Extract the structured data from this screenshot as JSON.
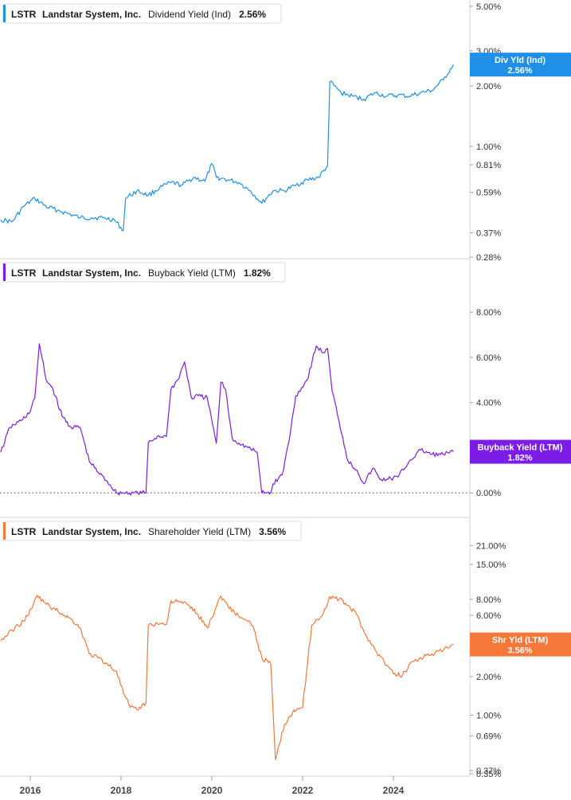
{
  "chart_data": [
    {
      "type": "line",
      "ticker": "LSTR",
      "company": "Landstar System, Inc.",
      "metric": "Dividend Yield (Ind)",
      "current_value": "2.56%",
      "tag_label": "Div Yld (Ind)",
      "tag_value": "2.56%",
      "color": "#1f8fe8",
      "scale": "log",
      "ylim": [
        0.28,
        5.0
      ],
      "yticks": [
        0.28,
        0.37,
        0.59,
        0.81,
        1.0,
        2.0,
        3.0,
        5.0
      ],
      "ytick_labels": [
        "0.28%",
        "0.37%",
        "0.59%",
        "0.81%",
        "1.00%",
        "2.00%",
        "3.00%",
        "5.00%"
      ],
      "x": [
        2015.35,
        2015.6,
        2015.85,
        2016.1,
        2016.35,
        2016.6,
        2016.85,
        2017.1,
        2017.35,
        2017.6,
        2017.85,
        2018.05,
        2018.1,
        2018.35,
        2018.6,
        2018.85,
        2019.1,
        2019.35,
        2019.6,
        2019.85,
        2020.0,
        2020.1,
        2020.35,
        2020.6,
        2020.85,
        2021.1,
        2021.35,
        2021.6,
        2021.85,
        2022.1,
        2022.35,
        2022.55,
        2022.6,
        2022.85,
        2023.1,
        2023.35,
        2023.6,
        2023.85,
        2024.1,
        2024.35,
        2024.6,
        2024.85,
        2025.1,
        2025.32
      ],
      "values": [
        0.43,
        0.42,
        0.5,
        0.55,
        0.5,
        0.48,
        0.46,
        0.44,
        0.44,
        0.44,
        0.43,
        0.38,
        0.55,
        0.6,
        0.57,
        0.62,
        0.66,
        0.64,
        0.7,
        0.67,
        0.82,
        0.7,
        0.68,
        0.66,
        0.6,
        0.52,
        0.6,
        0.6,
        0.64,
        0.68,
        0.7,
        0.8,
        2.1,
        1.85,
        1.78,
        1.72,
        1.85,
        1.78,
        1.8,
        1.78,
        1.85,
        1.9,
        2.15,
        2.56
      ]
    },
    {
      "type": "line",
      "ticker": "LSTR",
      "company": "Landstar System, Inc.",
      "metric": "Buyback Yield (LTM)",
      "current_value": "1.82%",
      "tag_label": "Buyback Yield (LTM)",
      "tag_value": "1.82%",
      "color": "#7b1de6",
      "scale": "linear",
      "ylim": [
        -0.1,
        8.5
      ],
      "yticks": [
        0,
        2,
        4,
        6,
        8
      ],
      "ytick_labels": [
        "0.00%",
        "2.00%",
        "4.00%",
        "6.00%",
        "8.00%"
      ],
      "x": [
        2015.35,
        2015.55,
        2015.8,
        2016.0,
        2016.1,
        2016.2,
        2016.35,
        2016.5,
        2016.7,
        2016.9,
        2017.1,
        2017.3,
        2017.5,
        2017.7,
        2017.9,
        2018.1,
        2018.3,
        2018.55,
        2018.6,
        2018.8,
        2019.0,
        2019.1,
        2019.25,
        2019.4,
        2019.55,
        2019.7,
        2019.9,
        2020.1,
        2020.2,
        2020.3,
        2020.45,
        2020.6,
        2020.8,
        2021.0,
        2021.1,
        2021.3,
        2021.35,
        2021.55,
        2021.7,
        2021.85,
        2022.1,
        2022.3,
        2022.45,
        2022.55,
        2022.65,
        2022.8,
        2023.0,
        2023.2,
        2023.35,
        2023.55,
        2023.7,
        2023.85,
        2024.1,
        2024.35,
        2024.6,
        2024.85,
        2025.1,
        2025.32
      ],
      "values": [
        1.8,
        2.9,
        3.2,
        3.6,
        4.2,
        6.6,
        5.0,
        4.6,
        3.4,
        2.9,
        2.9,
        1.4,
        0.9,
        0.5,
        0.0,
        0.0,
        0.0,
        0.0,
        2.2,
        2.5,
        2.5,
        4.6,
        5.0,
        5.8,
        4.2,
        4.3,
        4.2,
        2.2,
        4.9,
        4.6,
        2.4,
        2.2,
        2.0,
        1.8,
        0.0,
        0.0,
        0.4,
        0.8,
        2.3,
        4.3,
        5.0,
        6.5,
        6.2,
        6.4,
        4.5,
        3.2,
        1.4,
        1.0,
        0.4,
        1.1,
        0.6,
        0.6,
        0.7,
        1.4,
        1.9,
        1.7,
        1.7,
        1.82
      ]
    },
    {
      "type": "line",
      "ticker": "LSTR",
      "company": "Landstar System, Inc.",
      "metric": "Shareholder Yield (LTM)",
      "current_value": "3.56%",
      "tag_label": "Shr Yld (LTM)",
      "tag_value": "3.56%",
      "color": "#f4783a",
      "scale": "log",
      "ylim": [
        0.35,
        24.0
      ],
      "yticks": [
        0.35,
        0.37,
        0.69,
        1.0,
        2.0,
        6.0,
        8.0,
        15.0,
        21.0
      ],
      "ytick_labels": [
        "0.35%",
        "0.37%",
        "0.69%",
        "1.00%",
        "2.00%",
        "6.00%",
        "8.00%",
        "15.00%",
        "21.00%"
      ],
      "x": [
        2015.35,
        2015.6,
        2015.85,
        2016.05,
        2016.15,
        2016.3,
        2016.5,
        2016.7,
        2016.9,
        2017.1,
        2017.3,
        2017.5,
        2017.7,
        2017.9,
        2018.05,
        2018.2,
        2018.35,
        2018.55,
        2018.6,
        2018.8,
        2019.0,
        2019.1,
        2019.3,
        2019.5,
        2019.7,
        2019.9,
        2020.1,
        2020.2,
        2020.35,
        2020.5,
        2020.7,
        2020.9,
        2021.1,
        2021.3,
        2021.4,
        2021.6,
        2021.8,
        2022.0,
        2022.2,
        2022.45,
        2022.6,
        2022.8,
        2023.0,
        2023.2,
        2023.35,
        2023.6,
        2023.8,
        2024.0,
        2024.2,
        2024.4,
        2024.6,
        2024.85,
        2025.1,
        2025.32
      ],
      "values": [
        3.8,
        4.6,
        5.4,
        6.9,
        8.6,
        7.6,
        6.8,
        6.2,
        5.6,
        4.8,
        3.0,
        2.8,
        2.5,
        2.2,
        1.5,
        1.15,
        1.1,
        1.25,
        5.0,
        5.2,
        5.1,
        7.8,
        7.6,
        7.2,
        6.0,
        4.8,
        7.0,
        8.5,
        7.2,
        6.3,
        5.6,
        5.0,
        2.8,
        2.5,
        0.45,
        0.85,
        1.1,
        1.15,
        5.0,
        6.2,
        8.4,
        8.0,
        7.2,
        6.0,
        4.5,
        3.2,
        2.6,
        2.1,
        2.05,
        2.6,
        2.8,
        3.0,
        3.2,
        3.56
      ]
    }
  ],
  "x_axis": {
    "ticks": [
      2016,
      2018,
      2020,
      2022,
      2024
    ],
    "labels": [
      "2016",
      "2018",
      "2020",
      "2022",
      "2024"
    ]
  }
}
